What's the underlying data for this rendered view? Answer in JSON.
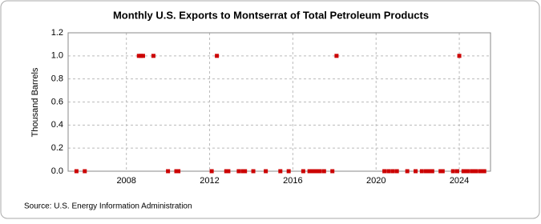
{
  "chart_data": {
    "type": "scatter",
    "title": "Monthly U.S. Exports to Montserrat of Total Petroleum Products",
    "y_label": "Thousand Barrels",
    "source": "Source: U.S. Energy Information Administration",
    "color": "#cc0000",
    "grid": true,
    "x": [
      2005.6,
      2006.0,
      2008.6,
      2008.7,
      2008.8,
      2009.3,
      2010.0,
      2010.4,
      2010.5,
      2012.1,
      2012.35,
      2012.8,
      2012.9,
      2013.4,
      2013.6,
      2013.7,
      2014.1,
      2014.7,
      2015.4,
      2015.8,
      2016.5,
      2016.8,
      2016.9,
      2017.0,
      2017.1,
      2017.2,
      2017.3,
      2017.5,
      2017.9,
      2018.1,
      2020.4,
      2020.6,
      2020.8,
      2021.0,
      2021.5,
      2021.9,
      2022.2,
      2022.4,
      2022.5,
      2022.6,
      2022.7,
      2023.1,
      2023.2,
      2023.7,
      2023.9,
      2024.0,
      2024.2,
      2024.3,
      2024.4,
      2024.6,
      2024.7,
      2024.8,
      2025.0,
      2025.1,
      2025.2
    ],
    "values": [
      0,
      0,
      1,
      1,
      1,
      1,
      0,
      0,
      0,
      0,
      1,
      0,
      0,
      0,
      0,
      0,
      0,
      0,
      0,
      0,
      0,
      0,
      0,
      0,
      0,
      0,
      0,
      0,
      0,
      1,
      0,
      0,
      0,
      0,
      0,
      0,
      0,
      0,
      0,
      0,
      0,
      0,
      0,
      0,
      0,
      1,
      0,
      0,
      0,
      0,
      0,
      0,
      0,
      0,
      0
    ],
    "xlim": [
      2005.2,
      2025.5
    ],
    "xticks": [
      2008,
      2012,
      2016,
      2020,
      2024
    ],
    "ylim": [
      0,
      1.2
    ],
    "yticks": [
      {
        "value": 0,
        "label": "0.0"
      },
      {
        "value": 0.2,
        "label": "0.2"
      },
      {
        "value": 0.4,
        "label": "0.4"
      },
      {
        "value": 0.6,
        "label": "0.6"
      },
      {
        "value": 0.8,
        "label": "0.8"
      },
      {
        "value": 1,
        "label": "1.0"
      },
      {
        "value": 1.2,
        "label": "1.2"
      }
    ]
  }
}
